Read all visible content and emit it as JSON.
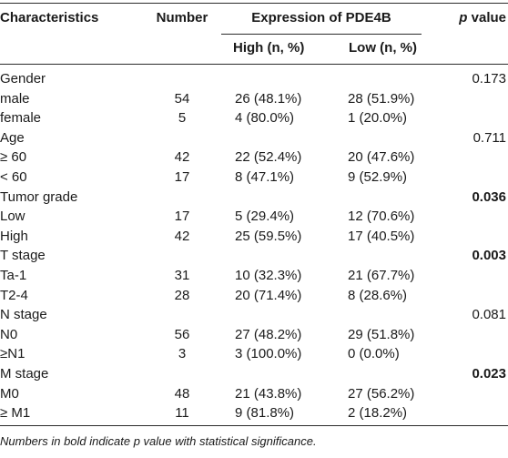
{
  "headers": {
    "characteristics": "Characteristics",
    "number": "Number",
    "expression": "Expression of PDE4B",
    "high": "High (n, %)",
    "low": "Low (n, %)",
    "p_italic": "p",
    "p_value": "value"
  },
  "rows": [
    {
      "label": "Gender",
      "number": "",
      "high": "",
      "low": "",
      "p": "0.173",
      "bold": false
    },
    {
      "label": "male",
      "number": "54",
      "high": "26 (48.1%)",
      "low": "28 (51.9%)",
      "p": "",
      "bold": false
    },
    {
      "label": "female",
      "number": "5",
      "high": "4 (80.0%)",
      "low": "1 (20.0%)",
      "p": "",
      "bold": false
    },
    {
      "label": "Age",
      "number": "",
      "high": "",
      "low": "",
      "p": "0.711",
      "bold": false
    },
    {
      "label": "≥ 60",
      "number": "42",
      "high": "22 (52.4%)",
      "low": "20 (47.6%)",
      "p": "",
      "bold": false
    },
    {
      "label": "< 60",
      "number": "17",
      "high": "8 (47.1%)",
      "low": "9 (52.9%)",
      "p": "",
      "bold": false
    },
    {
      "label": "Tumor grade",
      "number": "",
      "high": "",
      "low": "",
      "p": "0.036",
      "bold": true
    },
    {
      "label": "Low",
      "number": "17",
      "high": "5 (29.4%)",
      "low": "12 (70.6%)",
      "p": "",
      "bold": false
    },
    {
      "label": "High",
      "number": "42",
      "high": "25 (59.5%)",
      "low": "17 (40.5%)",
      "p": "",
      "bold": false
    },
    {
      "label": "T stage",
      "number": "",
      "high": "",
      "low": "",
      "p": "0.003",
      "bold": true
    },
    {
      "label": "Ta-1",
      "number": "31",
      "high": "10 (32.3%)",
      "low": "21 (67.7%)",
      "p": "",
      "bold": false
    },
    {
      "label": "T2-4",
      "number": "28",
      "high": "20 (71.4%)",
      "low": "8 (28.6%)",
      "p": "",
      "bold": false
    },
    {
      "label": "N stage",
      "number": "",
      "high": "",
      "low": "",
      "p": "0.081",
      "bold": false
    },
    {
      "label": "N0",
      "number": "56",
      "high": "27 (48.2%)",
      "low": "29 (51.8%)",
      "p": "",
      "bold": false
    },
    {
      "label": "≥N1",
      "number": "3",
      "high": "3 (100.0%)",
      "low": "0 (0.0%)",
      "p": "",
      "bold": false
    },
    {
      "label": "M stage",
      "number": "",
      "high": "",
      "low": "",
      "p": "0.023",
      "bold": true
    },
    {
      "label": "M0",
      "number": "48",
      "high": "21 (43.8%)",
      "low": "27 (56.2%)",
      "p": "",
      "bold": false
    },
    {
      "label": "≥ M1",
      "number": "11",
      "high": "9 (81.8%)",
      "low": "2 (18.2%)",
      "p": "",
      "bold": false
    }
  ],
  "footnote": "Numbers in bold indicate p value with statistical significance."
}
